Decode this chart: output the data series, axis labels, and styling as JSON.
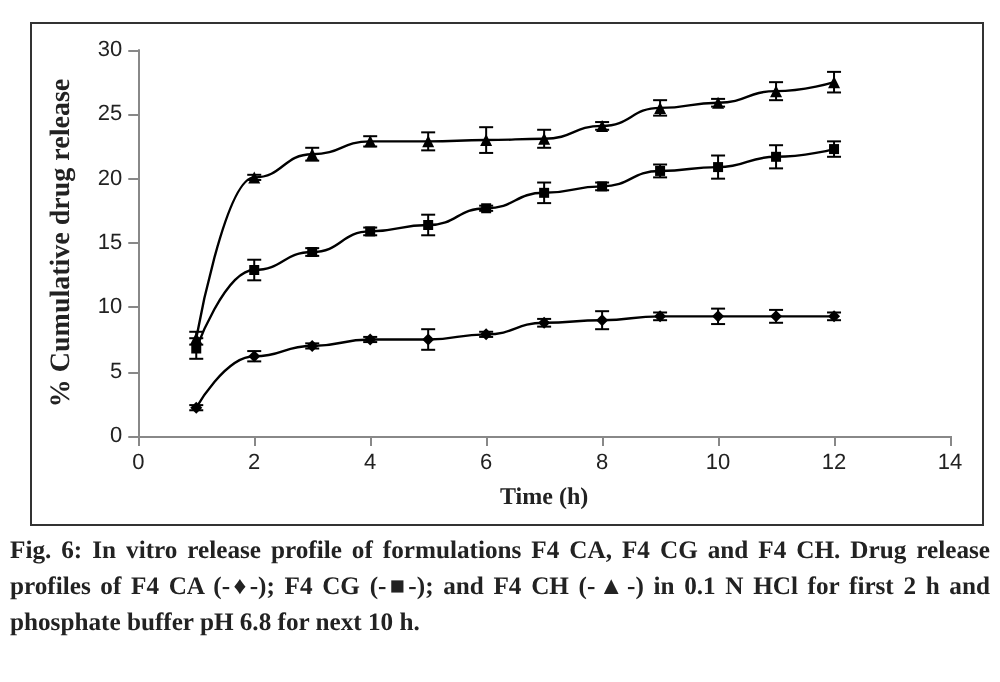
{
  "chart_data": {
    "type": "line",
    "xlabel": "Time (h)",
    "ylabel": "% Cumulative drug release",
    "x": [
      1,
      2,
      3,
      4,
      5,
      6,
      7,
      8,
      9,
      10,
      11,
      12
    ],
    "series": [
      {
        "color": "#000000",
        "marker": "triangle",
        "values": [
          7.6,
          20.1,
          21.9,
          22.9,
          22.9,
          23.0,
          23.1,
          24.1,
          25.5,
          25.9,
          26.8,
          27.5
        ],
        "errors": [
          0.5,
          0.2,
          0.5,
          0.4,
          0.7,
          1.0,
          0.7,
          0.3,
          0.6,
          0.3,
          0.7,
          0.8
        ]
      },
      {
        "color": "#000000",
        "marker": "square",
        "values": [
          6.8,
          12.9,
          14.3,
          15.9,
          16.4,
          17.7,
          18.9,
          19.4,
          20.6,
          20.9,
          21.7,
          22.3
        ],
        "errors": [
          0.8,
          0.8,
          0.3,
          0.3,
          0.8,
          0.2,
          0.8,
          0.3,
          0.5,
          0.9,
          0.9,
          0.6
        ]
      },
      {
        "color": "#000000",
        "marker": "diamond",
        "values": [
          2.2,
          6.2,
          7.0,
          7.5,
          7.5,
          7.9,
          8.8,
          9.0,
          9.3,
          9.3,
          9.3,
          9.3
        ],
        "errors": [
          0.2,
          0.4,
          0.2,
          0.2,
          0.8,
          0.2,
          0.3,
          0.7,
          0.3,
          0.6,
          0.5,
          0.3
        ]
      }
    ],
    "xlim": [
      0,
      14
    ],
    "xticks": [
      0,
      2,
      4,
      6,
      8,
      10,
      12,
      14
    ],
    "ylim": [
      0,
      30
    ],
    "yticks": [
      0,
      5,
      10,
      15,
      20,
      25,
      30
    ],
    "line_style": "solid",
    "annotations": [
      "Fig. 6: In vitro release profile of formulations F4 CA, F4 CG and F4 CH. Drug release profiles of F4 CA (-♦-); F4 CG (-■-); and F4 CH (-▲-) in 0.1 N HCl for first 2 h and phosphate buffer pH 6.8 for next 10 h."
    ]
  }
}
